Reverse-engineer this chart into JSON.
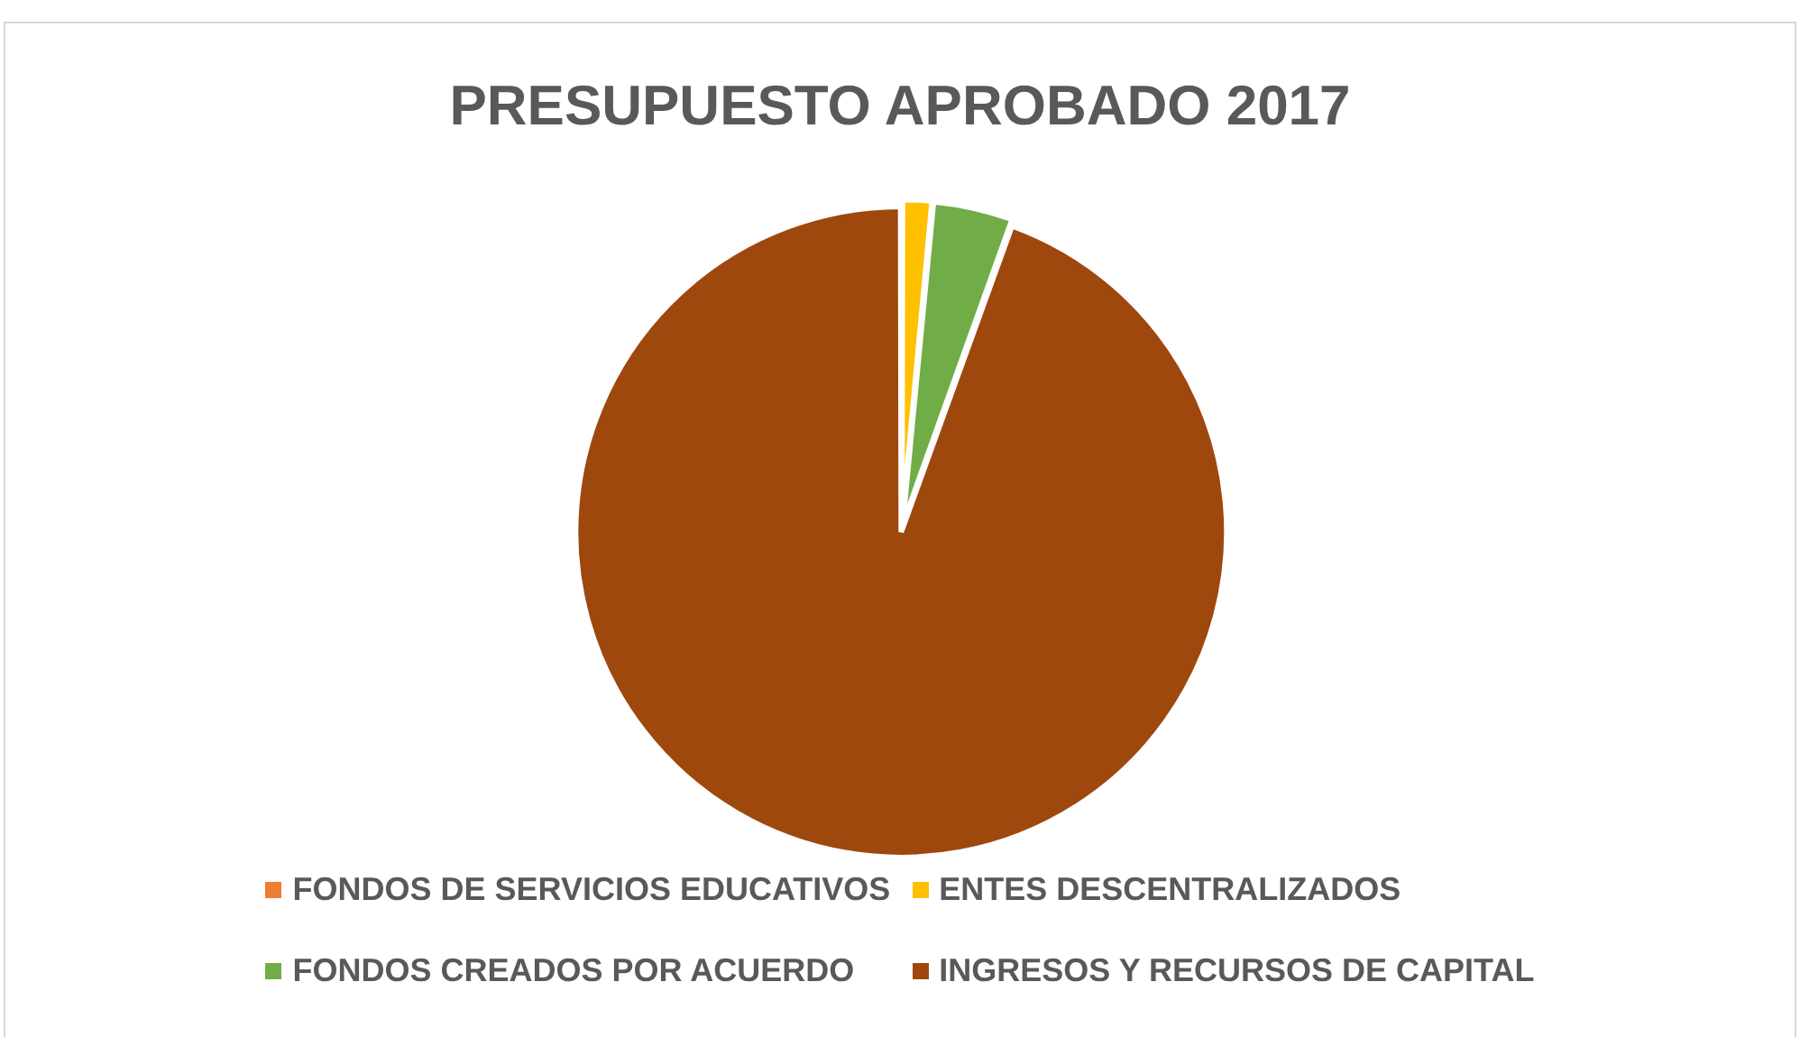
{
  "chart_data": {
    "type": "pie",
    "title": "PRESUPUESTO APROBADO 2017",
    "categories": [
      "FONDOS DE SERVICIOS EDUCATIVOS",
      "ENTES DESCENTRALIZADOS",
      "FONDOS CREADOS POR ACUERDO",
      "INGRESOS Y RECURSOS DE CAPITAL"
    ],
    "values": [
      null,
      1.5,
      4,
      94.5
    ],
    "colors": [
      "#ed7d31",
      "#ffc000",
      "#70ad47",
      "#9e480e"
    ],
    "legend": "bottom"
  }
}
